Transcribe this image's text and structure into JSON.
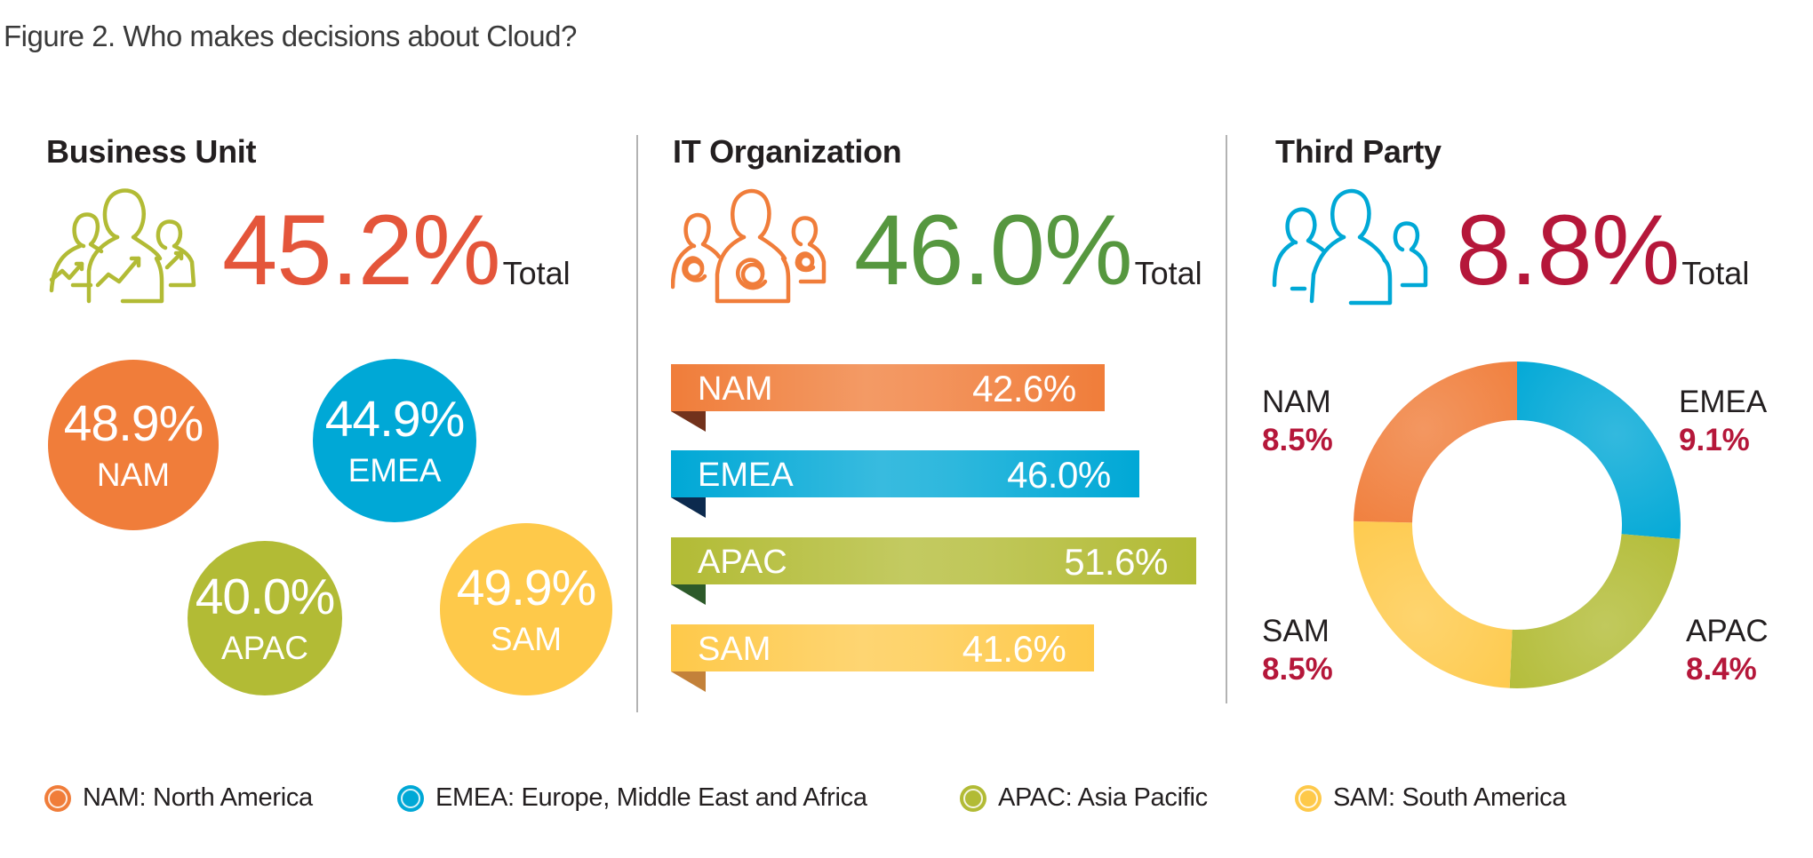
{
  "figure_title": "Figure 2. Who makes decisions about Cloud?",
  "colors": {
    "NAM": "#f07d3a",
    "EMEA": "#00a8d6",
    "APAC": "#b2bb35",
    "SAM": "#fec94a",
    "business_total": "#e4553a",
    "it_total": "#56973f",
    "third_total": "#b5173a"
  },
  "sections": {
    "business": {
      "heading": "Business Unit",
      "total": "45.2%",
      "total_suffix": "Total",
      "icon": "people-growth-icon"
    },
    "it": {
      "heading": "IT Organization",
      "total": "46.0%",
      "total_suffix": "Total",
      "icon": "people-email-icon"
    },
    "third": {
      "heading": "Third Party",
      "total": "8.8%",
      "total_suffix": "Total",
      "icon": "people-group-icon"
    }
  },
  "bubbles": [
    {
      "region": "NAM",
      "value": "48.9%"
    },
    {
      "region": "EMEA",
      "value": "44.9%"
    },
    {
      "region": "APAC",
      "value": "40.0%"
    },
    {
      "region": "SAM",
      "value": "49.9%"
    }
  ],
  "ribbons": [
    {
      "region": "NAM",
      "value": "42.6%"
    },
    {
      "region": "EMEA",
      "value": "46.0%"
    },
    {
      "region": "APAC",
      "value": "51.6%"
    },
    {
      "region": "SAM",
      "value": "41.6%"
    }
  ],
  "donut": [
    {
      "region": "NAM",
      "value": "8.5%"
    },
    {
      "region": "EMEA",
      "value": "9.1%"
    },
    {
      "region": "APAC",
      "value": "8.4%"
    },
    {
      "region": "SAM",
      "value": "8.5%"
    }
  ],
  "legend": [
    {
      "region": "NAM",
      "label": "NAM: North America"
    },
    {
      "region": "EMEA",
      "label": "EMEA: Europe, Middle East and Africa"
    },
    {
      "region": "APAC",
      "label": "APAC: Asia Pacific"
    },
    {
      "region": "SAM",
      "label": "SAM: South America"
    }
  ],
  "chart_data": [
    {
      "type": "bubble",
      "title": "Business Unit",
      "total": 45.2,
      "unit": "%",
      "categories": [
        "NAM",
        "EMEA",
        "APAC",
        "SAM"
      ],
      "values": [
        48.9,
        44.9,
        40.0,
        49.9
      ]
    },
    {
      "type": "bar",
      "orientation": "horizontal",
      "title": "IT Organization",
      "total": 46.0,
      "unit": "%",
      "categories": [
        "NAM",
        "EMEA",
        "APAC",
        "SAM"
      ],
      "values": [
        42.6,
        46.0,
        51.6,
        41.6
      ]
    },
    {
      "type": "pie",
      "variant": "donut",
      "title": "Third Party",
      "total": 8.8,
      "unit": "%",
      "categories": [
        "EMEA",
        "APAC",
        "SAM",
        "NAM"
      ],
      "values": [
        9.1,
        8.4,
        8.5,
        8.5
      ],
      "start": "top",
      "direction": "clockwise"
    }
  ]
}
